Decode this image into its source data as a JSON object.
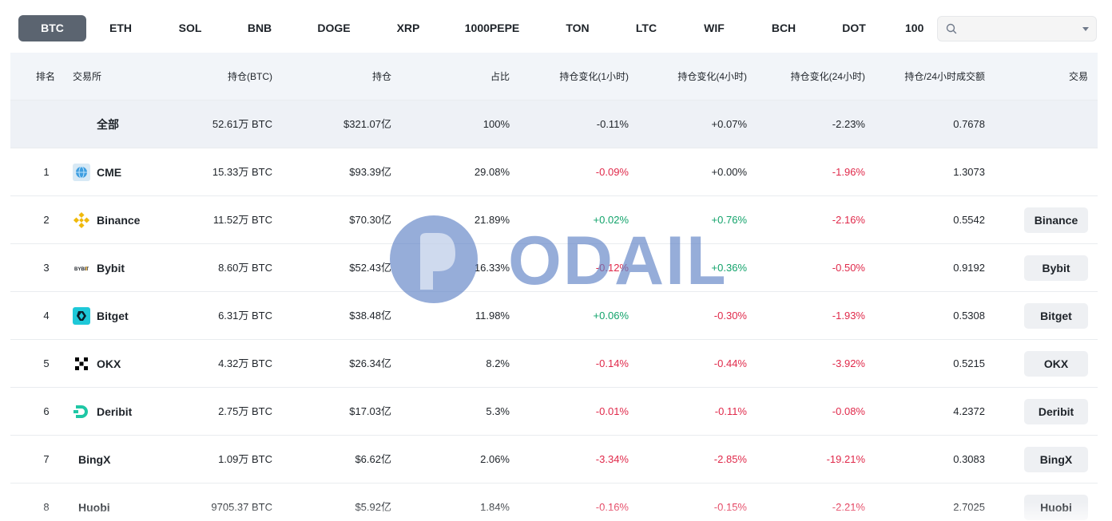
{
  "tabs": [
    "BTC",
    "ETH",
    "SOL",
    "BNB",
    "DOGE",
    "XRP",
    "1000PEPE",
    "TON",
    "LTC",
    "WIF",
    "BCH",
    "DOT",
    "100"
  ],
  "active_tab": "BTC",
  "search": {
    "placeholder": ""
  },
  "headers": {
    "rank": "排名",
    "exchange": "交易所",
    "oi_btc": "持仓(BTC)",
    "oi_usd": "持仓",
    "share": "占比",
    "chg_1h": "持仓变化(1小时)",
    "chg_4h": "持仓变化(4小时)",
    "chg_24h": "持仓变化(24小时)",
    "ratio": "持仓/24小时成交额",
    "trade": "交易"
  },
  "total": {
    "label": "全部",
    "oi_btc": "52.61万 BTC",
    "oi_usd": "$321.07亿",
    "share": "100%",
    "chg_1h": "-0.11%",
    "chg_4h": "+0.07%",
    "chg_24h": "-2.23%",
    "ratio": "0.7678"
  },
  "rows": [
    {
      "rank": "1",
      "name": "CME",
      "logo": "cme-globe-icon",
      "oi_btc": "15.33万 BTC",
      "oi_usd": "$93.39亿",
      "share": "29.08%",
      "chg_1h": "-0.09%",
      "chg_4h": "+0.00%",
      "chg_24h": "-1.96%",
      "ratio": "1.3073",
      "trade": ""
    },
    {
      "rank": "2",
      "name": "Binance",
      "logo": "binance-icon",
      "oi_btc": "11.52万 BTC",
      "oi_usd": "$70.30亿",
      "share": "21.89%",
      "chg_1h": "+0.02%",
      "chg_4h": "+0.76%",
      "chg_24h": "-2.16%",
      "ratio": "0.5542",
      "trade": "Binance"
    },
    {
      "rank": "3",
      "name": "Bybit",
      "logo": "bybit-icon",
      "oi_btc": "8.60万 BTC",
      "oi_usd": "$52.43亿",
      "share": "16.33%",
      "chg_1h": "-0.12%",
      "chg_4h": "+0.36%",
      "chg_24h": "-0.50%",
      "ratio": "0.9192",
      "trade": "Bybit"
    },
    {
      "rank": "4",
      "name": "Bitget",
      "logo": "bitget-icon",
      "oi_btc": "6.31万 BTC",
      "oi_usd": "$38.48亿",
      "share": "11.98%",
      "chg_1h": "+0.06%",
      "chg_4h": "-0.30%",
      "chg_24h": "-1.93%",
      "ratio": "0.5308",
      "trade": "Bitget"
    },
    {
      "rank": "5",
      "name": "OKX",
      "logo": "okx-icon",
      "oi_btc": "4.32万 BTC",
      "oi_usd": "$26.34亿",
      "share": "8.2%",
      "chg_1h": "-0.14%",
      "chg_4h": "-0.44%",
      "chg_24h": "-3.92%",
      "ratio": "0.5215",
      "trade": "OKX"
    },
    {
      "rank": "6",
      "name": "Deribit",
      "logo": "deribit-icon",
      "oi_btc": "2.75万 BTC",
      "oi_usd": "$17.03亿",
      "share": "5.3%",
      "chg_1h": "-0.01%",
      "chg_4h": "-0.11%",
      "chg_24h": "-0.08%",
      "ratio": "4.2372",
      "trade": "Deribit"
    },
    {
      "rank": "7",
      "name": "BingX",
      "logo": "",
      "oi_btc": "1.09万 BTC",
      "oi_usd": "$6.62亿",
      "share": "2.06%",
      "chg_1h": "-3.34%",
      "chg_4h": "-2.85%",
      "chg_24h": "-19.21%",
      "ratio": "0.3083",
      "trade": "BingX"
    },
    {
      "rank": "8",
      "name": "Huobi",
      "logo": "",
      "oi_btc": "9705.37 BTC",
      "oi_usd": "$5.92亿",
      "share": "1.84%",
      "chg_1h": "-0.16%",
      "chg_4h": "-0.15%",
      "chg_24h": "-2.21%",
      "ratio": "2.7025",
      "trade": "Huobi"
    }
  ],
  "watermark": "ODAILY",
  "colors": {
    "up": "#12a36b",
    "down": "#e0294a",
    "active_tab": "#5b6470",
    "header_bg": "#f2f5f9"
  }
}
